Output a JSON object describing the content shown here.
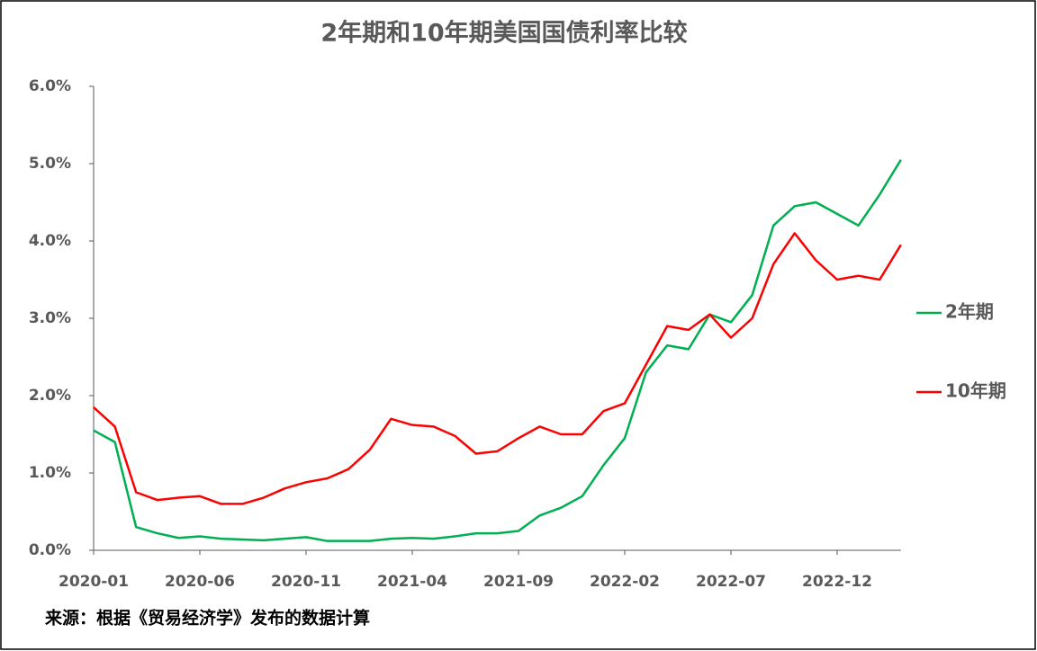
{
  "chart_data": {
    "type": "line",
    "title": "2年期和10年期美国国债利率比较",
    "x": [
      "2020-01",
      "2020-02",
      "2020-03",
      "2020-04",
      "2020-05",
      "2020-06",
      "2020-07",
      "2020-08",
      "2020-09",
      "2020-10",
      "2020-11",
      "2020-12",
      "2021-01",
      "2021-02",
      "2021-03",
      "2021-04",
      "2021-05",
      "2021-06",
      "2021-07",
      "2021-08",
      "2021-09",
      "2021-10",
      "2021-11",
      "2021-12",
      "2022-01",
      "2022-02",
      "2022-03",
      "2022-04",
      "2022-05",
      "2022-06",
      "2022-07",
      "2022-08",
      "2022-09",
      "2022-10",
      "2022-11",
      "2022-12",
      "2023-01",
      "2023-02",
      "2023-03"
    ],
    "series": [
      {
        "name": "2年期",
        "color": "#00b050",
        "values": [
          1.55,
          1.4,
          0.3,
          0.22,
          0.16,
          0.18,
          0.15,
          0.14,
          0.13,
          0.15,
          0.17,
          0.12,
          0.12,
          0.12,
          0.15,
          0.16,
          0.15,
          0.18,
          0.22,
          0.22,
          0.25,
          0.45,
          0.55,
          0.7,
          1.1,
          1.45,
          2.3,
          2.65,
          2.6,
          3.05,
          2.95,
          3.3,
          4.2,
          4.45,
          4.5,
          4.35,
          4.2,
          4.6,
          5.05
        ]
      },
      {
        "name": "10年期",
        "color": "#ff0000",
        "values": [
          1.85,
          1.6,
          0.75,
          0.65,
          0.68,
          0.7,
          0.6,
          0.6,
          0.68,
          0.8,
          0.88,
          0.93,
          1.05,
          1.3,
          1.7,
          1.62,
          1.6,
          1.48,
          1.25,
          1.28,
          1.45,
          1.6,
          1.5,
          1.5,
          1.8,
          1.9,
          2.4,
          2.9,
          2.85,
          3.05,
          2.75,
          3.0,
          3.7,
          4.1,
          3.75,
          3.5,
          3.55,
          3.5,
          3.95
        ]
      }
    ],
    "ylim": [
      0,
      6
    ],
    "yticks": [
      {
        "value": 0,
        "label": "0.0%"
      },
      {
        "value": 1,
        "label": "1.0%"
      },
      {
        "value": 2,
        "label": "2.0%"
      },
      {
        "value": 3,
        "label": "3.0%"
      },
      {
        "value": 4,
        "label": "4.0%"
      },
      {
        "value": 5,
        "label": "5.0%"
      },
      {
        "value": 6,
        "label": "6.0%"
      }
    ],
    "xticks": [
      "2020-01",
      "2020-06",
      "2020-11",
      "2021-04",
      "2021-09",
      "2022-02",
      "2022-07",
      "2022-12"
    ],
    "legend": "right",
    "source": "来源：根据《贸易经济学》发布的数据计算"
  }
}
